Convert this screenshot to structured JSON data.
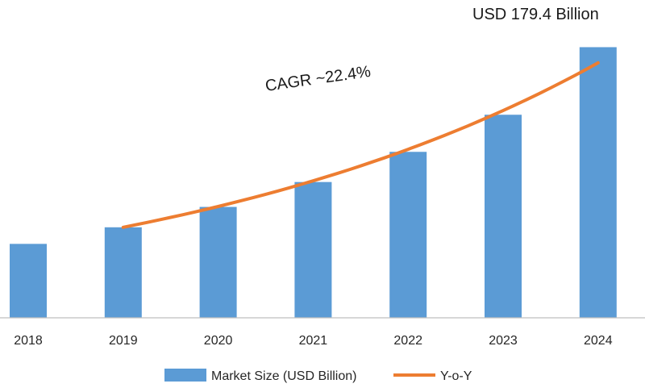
{
  "chart_data": {
    "type": "bar",
    "categories": [
      "2018",
      "2019",
      "2020",
      "2021",
      "2022",
      "2023",
      "2024"
    ],
    "series": [
      {
        "name": "Market Size (USD Billion)",
        "type": "bar",
        "color": "#5b9bd5",
        "values": [
          49.0,
          60.0,
          73.5,
          90.0,
          110.0,
          134.6,
          179.4
        ]
      },
      {
        "name": "Y-o-Y",
        "type": "line",
        "color": "#ed7d31",
        "x": [
          "2019",
          "2024"
        ],
        "values": [
          60.0,
          169.0
        ]
      }
    ],
    "ylim": [
      0,
      185
    ],
    "grid": false,
    "legend": "bottom",
    "annotations": {
      "cagr": "CAGR ~22.4%",
      "last_value": "USD 179.4 Billion"
    }
  }
}
